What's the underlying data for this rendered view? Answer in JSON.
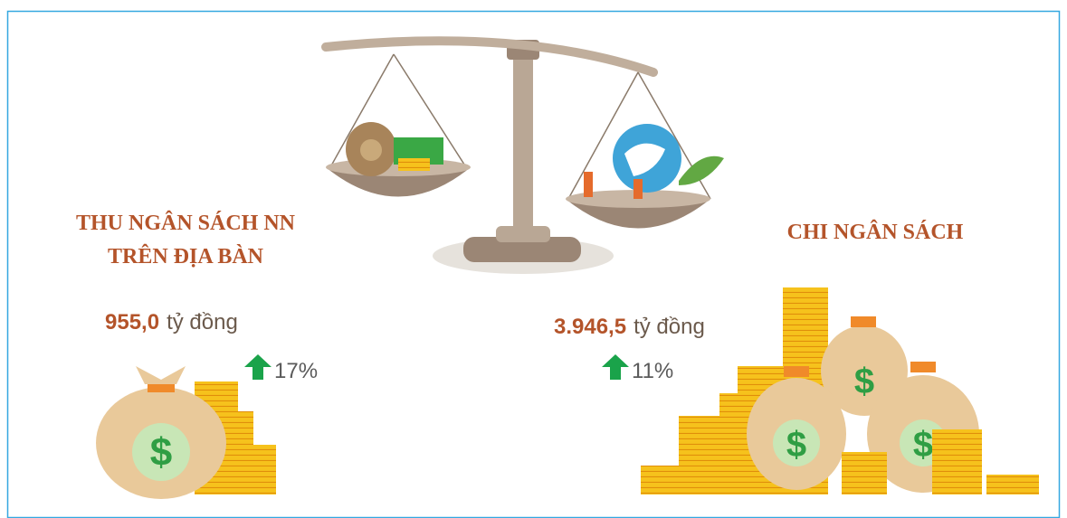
{
  "left": {
    "title_line1": "THU NGÂN SÁCH NN",
    "title_line2": "TRÊN ĐỊA BÀN",
    "amount": "955,0",
    "unit": "tỷ đồng",
    "change": "17%"
  },
  "right": {
    "title": "CHI NGÂN SÁCH",
    "amount": "3.946,5",
    "unit": "tỷ đồng",
    "change": "11%"
  }
}
